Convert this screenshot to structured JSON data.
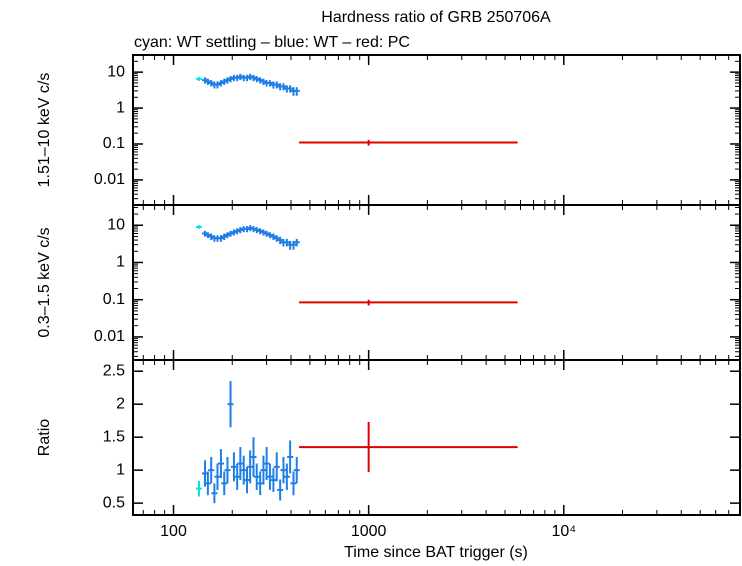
{
  "chart_data": [
    {
      "type": "scatter",
      "title": "Hardness ratio of GRB 250706A",
      "subtitle": "cyan: WT settling – blue: WT – red: PC",
      "ylabel": "1.51–10 keV c/s",
      "xscale": "log",
      "yscale": "log",
      "xlim": [
        62,
        80000
      ],
      "ylim": [
        0.002,
        30
      ],
      "xticks": [
        100,
        1000,
        10000
      ],
      "yticks": [
        10,
        1,
        0.1,
        0.01
      ],
      "series": [
        {
          "color": "#00e5e5",
          "x": [
            135
          ],
          "values": [
            6.5
          ],
          "yerr": [
            0.8
          ]
        },
        {
          "color": "#1f7fe6",
          "x": [
            145,
            150,
            156,
            162,
            168,
            175,
            182,
            189,
            196,
            204,
            212,
            220,
            229,
            238,
            247,
            257,
            267,
            278,
            289,
            300,
            312,
            325,
            338,
            352,
            366,
            381,
            396,
            412,
            428
          ],
          "values": [
            6,
            5.5,
            5,
            4.5,
            4.5,
            5,
            5.5,
            6,
            6.5,
            7,
            7,
            7.5,
            7,
            7,
            7.5,
            7,
            6.5,
            6,
            5.5,
            5,
            5,
            4.5,
            4.5,
            4,
            4,
            3.5,
            3.5,
            3,
            3
          ],
          "yerr": [
            1.2,
            1.1,
            1,
            1,
            1,
            1,
            1.1,
            1.2,
            1.3,
            1.4,
            1.4,
            1.5,
            1.4,
            1.4,
            1.5,
            1.4,
            1.3,
            1.2,
            1.1,
            1,
            1,
            1,
            1,
            0.9,
            0.9,
            0.8,
            0.8,
            0.8,
            0.8
          ]
        },
        {
          "color": "#e00000",
          "x": [
            1000
          ],
          "x_low": [
            440
          ],
          "x_high": [
            5800
          ],
          "values": [
            0.11
          ],
          "yerr": [
            0.02
          ]
        }
      ]
    },
    {
      "type": "scatter",
      "ylabel": "0.3–1.5 keV c/s",
      "xscale": "log",
      "yscale": "log",
      "xlim": [
        62,
        80000
      ],
      "ylim": [
        0.0024,
        35
      ],
      "xticks": [
        100,
        1000,
        10000
      ],
      "yticks": [
        10,
        1,
        0.1,
        0.01
      ],
      "series": [
        {
          "color": "#00e5e5",
          "x": [
            135
          ],
          "values": [
            9
          ],
          "yerr": [
            1
          ]
        },
        {
          "color": "#1f7fe6",
          "x": [
            145,
            150,
            156,
            162,
            168,
            175,
            182,
            189,
            196,
            204,
            212,
            220,
            229,
            238,
            247,
            257,
            267,
            278,
            289,
            300,
            312,
            325,
            338,
            352,
            366,
            381,
            396,
            412,
            428
          ],
          "values": [
            6,
            5.5,
            5,
            4.5,
            4.5,
            4.5,
            5,
            5.5,
            6,
            6.5,
            7,
            7.5,
            8,
            8,
            8.5,
            8,
            7.5,
            7,
            6.5,
            6,
            5.5,
            5,
            4.5,
            4,
            3.5,
            3.5,
            3,
            3,
            3.5
          ],
          "yerr": [
            1.1,
            1,
            1,
            0.9,
            0.9,
            0.9,
            1,
            1,
            1.1,
            1.2,
            1.3,
            1.4,
            1.5,
            1.5,
            1.6,
            1.5,
            1.4,
            1.3,
            1.2,
            1.1,
            1,
            1,
            0.9,
            0.9,
            0.8,
            0.8,
            0.8,
            0.8,
            0.8
          ]
        },
        {
          "color": "#e00000",
          "x": [
            1000
          ],
          "x_low": [
            440
          ],
          "x_high": [
            5800
          ],
          "values": [
            0.085
          ],
          "yerr": [
            0.015
          ]
        }
      ]
    },
    {
      "type": "scatter",
      "ylabel": "Ratio",
      "xlabel": "Time since BAT trigger (s)",
      "xscale": "log",
      "xlim": [
        62,
        80000
      ],
      "ylim": [
        0.32,
        2.67
      ],
      "xticks": [
        100,
        1000,
        {
          "value": 10000,
          "label": "10⁴"
        }
      ],
      "yticks": [
        0.5,
        1,
        1.5,
        2,
        2.5
      ],
      "series": [
        {
          "color": "#00e5e5",
          "x": [
            135
          ],
          "values": [
            0.72
          ],
          "yerr": [
            0.12
          ]
        },
        {
          "color": "#1f7fe6",
          "x": [
            145,
            150,
            156,
            162,
            168,
            175,
            182,
            189,
            196,
            204,
            212,
            220,
            229,
            238,
            247,
            257,
            267,
            278,
            289,
            300,
            312,
            325,
            338,
            352,
            366,
            381,
            396,
            412,
            428
          ],
          "values": [
            0.95,
            0.8,
            1.0,
            0.65,
            0.9,
            1.1,
            0.8,
            1.0,
            2.0,
            1.05,
            0.9,
            1.1,
            1.0,
            0.85,
            1.05,
            1.2,
            0.9,
            0.8,
            1.0,
            1.1,
            0.9,
            0.85,
            1.05,
            0.7,
            1.0,
            0.9,
            1.2,
            0.8,
            1.0
          ],
          "yerr": [
            0.2,
            0.18,
            0.2,
            0.15,
            0.2,
            0.22,
            0.18,
            0.2,
            0.35,
            0.22,
            0.2,
            0.25,
            0.22,
            0.2,
            0.25,
            0.3,
            0.2,
            0.18,
            0.22,
            0.25,
            0.2,
            0.18,
            0.22,
            0.16,
            0.2,
            0.2,
            0.25,
            0.18,
            0.2
          ]
        },
        {
          "color": "#e00000",
          "x": [
            1000
          ],
          "x_low": [
            440
          ],
          "x_high": [
            5800
          ],
          "values": [
            1.35
          ],
          "yerr": [
            0.38
          ]
        }
      ]
    }
  ]
}
